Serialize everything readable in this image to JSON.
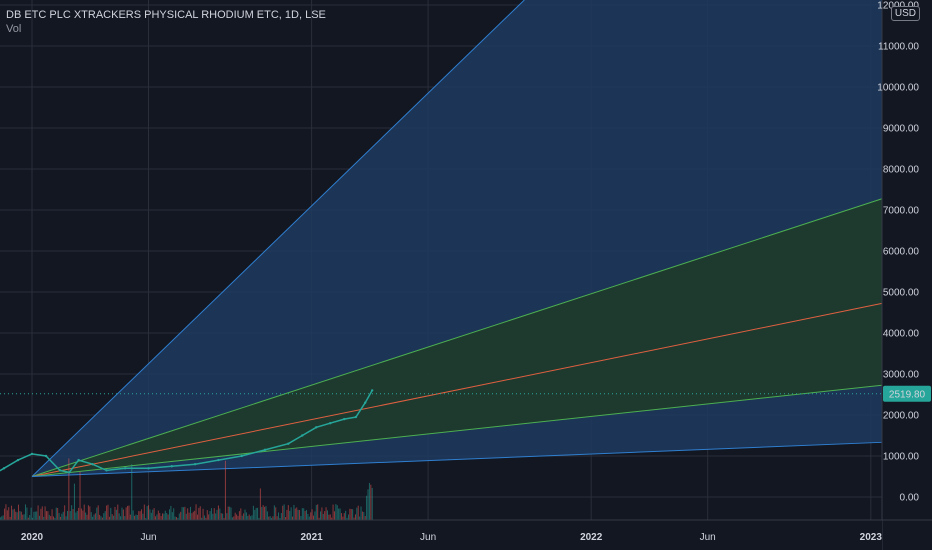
{
  "legend": {
    "title": "DB ETC PLC XTRACKERS PHYSICAL RHODIUM ETC, 1D, LSE",
    "volume_label": "Vol"
  },
  "currency": "USD",
  "colors": {
    "background": "#131722",
    "fan_outer_fill": "#1e3a5f",
    "fan_inner_fill": "#1f3b2d",
    "outer_line": "#2f7fd0",
    "green_line": "#4caf50",
    "red_line": "#e06040",
    "price_up": "#26a69a",
    "price_down": "#ef5350",
    "last_price_bg": "#26a69a"
  },
  "chart_data": {
    "type": "line",
    "title": "DB ETC PLC XTRACKERS PHYSICAL RHODIUM ETC, 1D, LSE",
    "y_axis_ticks": [
      "0.00",
      "1000.00",
      "2000.00",
      "3000.00",
      "4000.00",
      "5000.00",
      "6000.00",
      "7000.00",
      "8000.00",
      "9000.00",
      "10000.00",
      "11000.00",
      "12000.00"
    ],
    "ylim": [
      -500,
      12100
    ],
    "x_axis_ticks": [
      {
        "label": "2020",
        "bold": true,
        "t": 0
      },
      {
        "label": "Jun",
        "bold": false,
        "t": 5
      },
      {
        "label": "2021",
        "bold": true,
        "t": 12
      },
      {
        "label": "Jun",
        "bold": false,
        "t": 17
      },
      {
        "label": "2022",
        "bold": true,
        "t": 24
      },
      {
        "label": "Jun",
        "bold": false,
        "t": 29
      },
      {
        "label": "2023",
        "bold": true,
        "t": 36
      }
    ],
    "last_price": "2519.80",
    "last_price_value": 2519.8,
    "fan_origin": {
      "t": 0,
      "value": 500
    },
    "fan_lines": [
      {
        "name": "outer-upper",
        "end_t": 70,
        "end_value": 39000,
        "color": "#2f7fd0"
      },
      {
        "name": "green-upper",
        "end_t": 70,
        "end_value": 13500,
        "color": "#4caf50"
      },
      {
        "name": "red-middle",
        "end_t": 70,
        "end_value": 8600,
        "color": "#e06040"
      },
      {
        "name": "green-lower",
        "end_t": 70,
        "end_value": 4770,
        "color": "#4caf50"
      },
      {
        "name": "outer-lower",
        "end_t": 70,
        "end_value": 2100,
        "color": "#2f7fd0"
      }
    ],
    "price_series": {
      "t": [
        -1.8,
        -1.2,
        -0.6,
        0,
        0.6,
        1.2,
        1.6,
        2.0,
        2.6,
        3.2,
        4.0,
        5.0,
        6.0,
        7.0,
        8.0,
        9.0,
        10.0,
        11.0,
        11.6,
        12.2,
        12.8,
        13.4,
        13.9,
        14.3,
        14.6
      ],
      "values": [
        500,
        700,
        900,
        1050,
        1000,
        650,
        600,
        900,
        800,
        650,
        700,
        700,
        750,
        800,
        900,
        1000,
        1150,
        1300,
        1500,
        1700,
        1800,
        1900,
        1950,
        2300,
        2600
      ]
    },
    "volume_t_range": [
      -1.8,
      14.6
    ],
    "grid": true,
    "xlabel": "",
    "ylabel": ""
  }
}
